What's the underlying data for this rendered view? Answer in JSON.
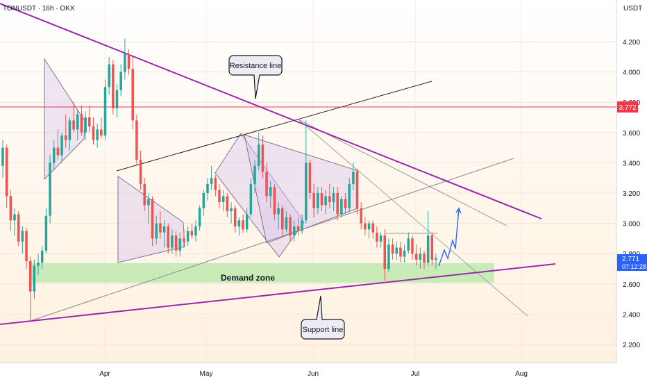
{
  "header": {
    "symbol": "TONUSDT · 16h · OKX",
    "currency": "USDT"
  },
  "chart_data": {
    "type": "candlestick",
    "symbol": "TONUSDT",
    "timeframe": "16h",
    "exchange": "OKX",
    "y_axis": {
      "ticks": [
        "4.200",
        "4.000",
        "3.800",
        "3.600",
        "3.400",
        "3.200",
        "3.000",
        "2.800",
        "2.600",
        "2.400",
        "2.200"
      ],
      "ylim": [
        2.1,
        4.35
      ]
    },
    "x_axis": {
      "ticks": [
        "Apr",
        "May",
        "Jun",
        "Jul",
        "Aug"
      ]
    },
    "price_labels": {
      "resistance_level": "3.772",
      "last_price": "2.771",
      "countdown": "07:12:28"
    },
    "annotations": {
      "resistance_label": "Resistance line",
      "support_label": "Support line",
      "demand_label": "Demand zone"
    },
    "colors": {
      "up": "#26a69a",
      "down": "#ef5350",
      "magenta": "#9c27b0",
      "demand": "#a5e39a",
      "hline": "#f23645",
      "last": "#2962ff"
    },
    "candles": [
      [
        3.38,
        3.55,
        3.3,
        3.5
      ],
      [
        3.5,
        3.52,
        3.1,
        3.18
      ],
      [
        3.18,
        3.22,
        2.95,
        3.02
      ],
      [
        3.02,
        3.1,
        2.92,
        3.06
      ],
      [
        3.06,
        3.08,
        2.85,
        2.88
      ],
      [
        2.88,
        2.98,
        2.8,
        2.95
      ],
      [
        2.95,
        2.97,
        2.7,
        2.75
      ],
      [
        2.75,
        2.78,
        2.35,
        2.55
      ],
      [
        2.55,
        2.76,
        2.5,
        2.72
      ],
      [
        2.72,
        2.8,
        2.66,
        2.74
      ],
      [
        2.74,
        2.85,
        2.7,
        2.82
      ],
      [
        2.82,
        3.1,
        2.8,
        3.05
      ],
      [
        3.05,
        3.45,
        3.0,
        3.4
      ],
      [
        3.4,
        3.55,
        3.35,
        3.5
      ],
      [
        3.5,
        3.62,
        3.42,
        3.45
      ],
      [
        3.45,
        3.6,
        3.4,
        3.58
      ],
      [
        3.58,
        3.72,
        3.5,
        3.55
      ],
      [
        3.55,
        3.7,
        3.48,
        3.68
      ],
      [
        3.68,
        3.8,
        3.6,
        3.62
      ],
      [
        3.62,
        3.75,
        3.55,
        3.72
      ],
      [
        3.72,
        3.78,
        3.58,
        3.6
      ],
      [
        3.6,
        3.74,
        3.55,
        3.7
      ],
      [
        3.7,
        3.78,
        3.6,
        3.64
      ],
      [
        3.64,
        3.7,
        3.52,
        3.55
      ],
      [
        3.55,
        3.66,
        3.5,
        3.62
      ],
      [
        3.62,
        3.7,
        3.56,
        3.58
      ],
      [
        3.58,
        3.95,
        3.55,
        3.9
      ],
      [
        3.9,
        4.1,
        3.85,
        4.05
      ],
      [
        4.05,
        4.08,
        3.72,
        3.76
      ],
      [
        3.76,
        3.92,
        3.7,
        3.88
      ],
      [
        3.88,
        4.05,
        3.84,
        4.0
      ],
      [
        4.0,
        4.22,
        3.95,
        4.12
      ],
      [
        4.12,
        4.15,
        3.98,
        4.02
      ],
      [
        4.02,
        4.1,
        3.62,
        3.68
      ],
      [
        3.68,
        3.72,
        3.38,
        3.42
      ],
      [
        3.42,
        3.48,
        3.22,
        3.26
      ],
      [
        3.26,
        3.3,
        3.08,
        3.12
      ],
      [
        3.12,
        3.2,
        3.0,
        3.16
      ],
      [
        3.16,
        3.18,
        2.85,
        2.9
      ],
      [
        2.9,
        3.05,
        2.86,
        3.0
      ],
      [
        3.0,
        3.08,
        2.9,
        2.94
      ],
      [
        2.94,
        3.02,
        2.84,
        2.98
      ],
      [
        2.98,
        3.0,
        2.8,
        2.84
      ],
      [
        2.84,
        2.96,
        2.8,
        2.92
      ],
      [
        2.92,
        2.95,
        2.78,
        2.82
      ],
      [
        2.82,
        2.94,
        2.78,
        2.9
      ],
      [
        2.9,
        2.96,
        2.84,
        2.88
      ],
      [
        2.88,
        2.98,
        2.85,
        2.95
      ],
      [
        2.95,
        3.0,
        2.9,
        2.92
      ],
      [
        2.92,
        3.02,
        2.88,
        2.98
      ],
      [
        2.98,
        3.12,
        2.95,
        3.1
      ],
      [
        3.1,
        3.22,
        3.05,
        3.2
      ],
      [
        3.2,
        3.3,
        3.15,
        3.26
      ],
      [
        3.26,
        3.38,
        3.22,
        3.3
      ],
      [
        3.3,
        3.32,
        3.18,
        3.22
      ],
      [
        3.22,
        3.26,
        3.1,
        3.14
      ],
      [
        3.14,
        3.22,
        3.08,
        3.18
      ],
      [
        3.18,
        3.2,
        3.04,
        3.08
      ],
      [
        3.08,
        3.14,
        3.0,
        3.1
      ],
      [
        3.1,
        3.12,
        2.94,
        2.98
      ],
      [
        2.98,
        3.04,
        2.92,
        3.02
      ],
      [
        3.02,
        3.06,
        2.94,
        2.96
      ],
      [
        2.96,
        3.1,
        2.94,
        3.06
      ],
      [
        3.06,
        3.3,
        3.04,
        3.26
      ],
      [
        3.26,
        3.42,
        3.2,
        3.38
      ],
      [
        3.38,
        3.6,
        3.35,
        3.52
      ],
      [
        3.52,
        3.58,
        3.3,
        3.34
      ],
      [
        3.34,
        3.4,
        3.14,
        3.18
      ],
      [
        3.18,
        3.28,
        3.1,
        3.24
      ],
      [
        3.24,
        3.26,
        3.02,
        3.06
      ],
      [
        3.06,
        3.14,
        2.96,
        3.1
      ],
      [
        3.1,
        3.12,
        2.92,
        2.96
      ],
      [
        2.96,
        3.08,
        2.94,
        3.04
      ],
      [
        3.04,
        3.06,
        2.88,
        2.92
      ],
      [
        2.92,
        3.02,
        2.88,
        2.98
      ],
      [
        2.98,
        3.04,
        2.92,
        2.95
      ],
      [
        2.95,
        3.06,
        2.93,
        3.02
      ],
      [
        3.02,
        3.68,
        3.0,
        3.4
      ],
      [
        3.4,
        3.42,
        3.16,
        3.2
      ],
      [
        3.2,
        3.26,
        3.04,
        3.1
      ],
      [
        3.1,
        3.24,
        3.06,
        3.2
      ],
      [
        3.2,
        3.24,
        3.08,
        3.12
      ],
      [
        3.12,
        3.22,
        3.06,
        3.18
      ],
      [
        3.18,
        3.26,
        3.1,
        3.14
      ],
      [
        3.14,
        3.24,
        3.08,
        3.2
      ],
      [
        3.2,
        3.24,
        3.02,
        3.06
      ],
      [
        3.06,
        3.18,
        3.04,
        3.16
      ],
      [
        3.16,
        3.2,
        3.06,
        3.1
      ],
      [
        3.1,
        3.3,
        3.08,
        3.26
      ],
      [
        3.26,
        3.4,
        3.22,
        3.34
      ],
      [
        3.34,
        3.36,
        3.06,
        3.1
      ],
      [
        3.1,
        3.14,
        2.96,
        3.0
      ],
      [
        3.0,
        3.04,
        2.92,
        2.96
      ],
      [
        2.96,
        3.02,
        2.9,
        3.0
      ],
      [
        3.0,
        3.02,
        2.9,
        2.94
      ],
      [
        2.94,
        2.98,
        2.84,
        2.88
      ],
      [
        2.88,
        2.94,
        2.84,
        2.92
      ],
      [
        2.92,
        2.96,
        2.62,
        2.7
      ],
      [
        2.7,
        2.9,
        2.68,
        2.86
      ],
      [
        2.86,
        2.9,
        2.76,
        2.8
      ],
      [
        2.8,
        2.88,
        2.76,
        2.84
      ],
      [
        2.84,
        2.88,
        2.74,
        2.78
      ],
      [
        2.78,
        2.86,
        2.74,
        2.82
      ],
      [
        2.82,
        2.94,
        2.8,
        2.9
      ],
      [
        2.9,
        2.92,
        2.76,
        2.8
      ],
      [
        2.8,
        2.86,
        2.72,
        2.76
      ],
      [
        2.76,
        2.84,
        2.7,
        2.8
      ],
      [
        2.8,
        2.82,
        2.7,
        2.74
      ],
      [
        2.74,
        3.08,
        2.72,
        2.92
      ],
      [
        2.92,
        2.94,
        2.72,
        2.76
      ],
      [
        2.76,
        2.8,
        2.7,
        2.771
      ]
    ]
  }
}
